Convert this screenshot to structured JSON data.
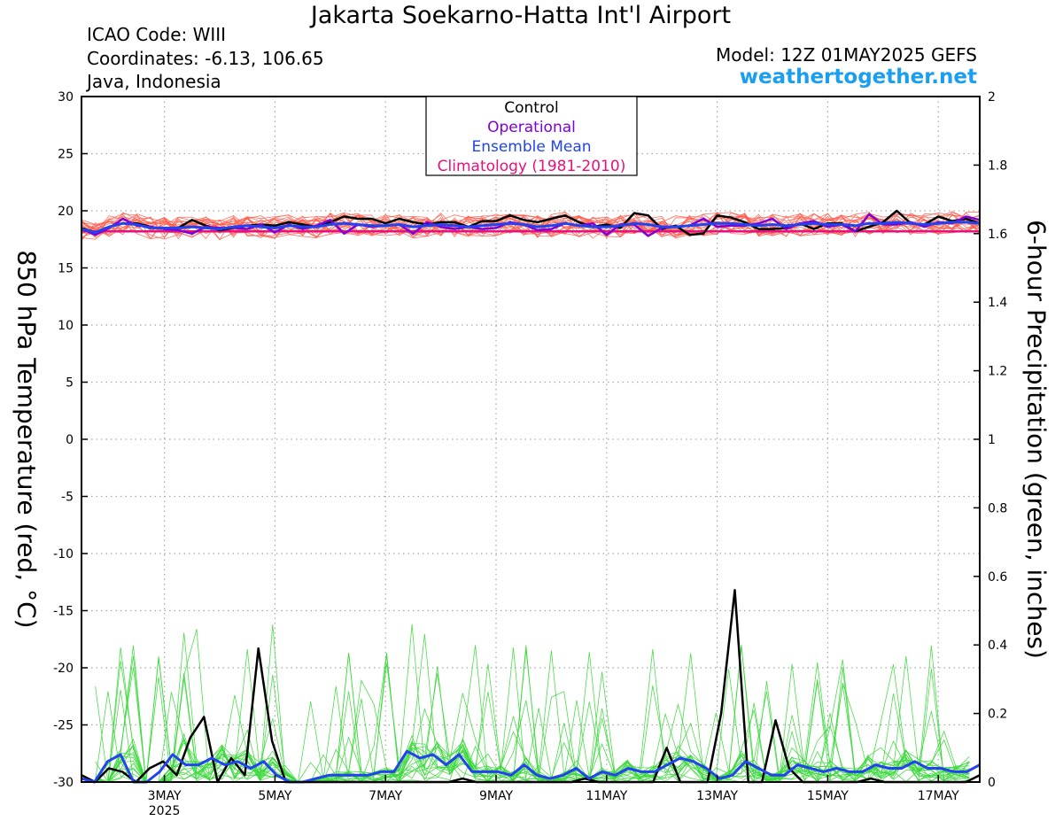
{
  "header": {
    "title": "Jakarta Soekarno-Hatta Int'l Airport",
    "icao": "ICAO Code: WIII",
    "coords": "Coordinates: -6.13, 106.65",
    "region": "Java, Indonesia",
    "model": "Model: 12Z 01MAY2025 GEFS",
    "site": "weathertogether.net"
  },
  "colors": {
    "control": "#000000",
    "operational": "#8000d8",
    "ensemble_mean": "#2244ee",
    "climatology": "#e8107a",
    "members_temp": "#ff5a4a",
    "members_precip": "#38d838",
    "site": "#1a9ff0"
  },
  "chart_data": {
    "type": "line",
    "title": "Jakarta Soekarno-Hatta Int'l Airport",
    "ylabel_left": "850 hPa Temperature (red, °C)",
    "ylabel_right": "6-hour Precipitation (green, inches)",
    "ylim_left": [
      -30,
      30
    ],
    "ylim_right": [
      0,
      2
    ],
    "yticks_left": [
      "30",
      "25",
      "20",
      "15",
      "10",
      "5",
      "0",
      "-5",
      "-10",
      "-15",
      "-20",
      "-25",
      "-30"
    ],
    "yticks_right": [
      "2",
      "1.8",
      "1.6",
      "1.4",
      "1.2",
      "1",
      "0.8",
      "0.6",
      "0.4",
      "0.2",
      "0"
    ],
    "x_range_hours": [
      0,
      390
    ],
    "xticks": [
      {
        "hour": 36,
        "label": "3MAY",
        "sub": "2025"
      },
      {
        "hour": 84,
        "label": "5MAY",
        "sub": ""
      },
      {
        "hour": 132,
        "label": "7MAY",
        "sub": ""
      },
      {
        "hour": 180,
        "label": "9MAY",
        "sub": ""
      },
      {
        "hour": 228,
        "label": "11MAY",
        "sub": ""
      },
      {
        "hour": 276,
        "label": "13MAY",
        "sub": ""
      },
      {
        "hour": 324,
        "label": "15MAY",
        "sub": ""
      },
      {
        "hour": 372,
        "label": "17MAY",
        "sub": ""
      }
    ],
    "legend": {
      "position": "top-center",
      "entries": [
        "Control",
        "Operational",
        "Ensemble Mean",
        "Climatology (1981-2010)"
      ]
    },
    "grid": true,
    "series": [
      {
        "name": "Control",
        "axis": "temperature",
        "values": [
          18.5,
          18.1,
          18.6,
          18.9,
          18.9,
          18.6,
          18.4,
          18.5,
          19.2,
          18.7,
          18.3,
          18.5,
          18.7,
          18.8,
          18.7,
          19.0,
          18.8,
          18.6,
          19.0,
          19.5,
          19.3,
          19.3,
          18.9,
          19.3,
          19.0,
          18.8,
          19.0,
          19.0,
          18.6,
          19.1,
          19.1,
          19.6,
          19.2,
          19.0,
          19.3,
          19.6,
          19.0,
          18.6,
          18.8,
          18.5,
          19.8,
          19.6,
          18.4,
          18.7,
          17.9,
          18.0,
          19.6,
          19.4,
          19.0,
          18.4,
          18.4,
          18.5,
          18.9,
          18.4,
          18.9,
          18.9,
          18.2,
          18.6,
          19.0,
          20.0,
          18.9,
          18.8,
          19.5,
          19.1,
          19.3,
          18.9
        ]
      },
      {
        "name": "Operational",
        "axis": "temperature",
        "values": [
          18.4,
          17.9,
          18.5,
          19.3,
          18.7,
          18.6,
          18.4,
          18.3,
          18.0,
          18.6,
          18.5,
          18.5,
          18.4,
          18.8,
          18.1,
          18.8,
          18.4,
          18.7,
          19.2,
          18.0,
          18.8,
          18.6,
          18.7,
          18.8,
          18.0,
          19.0,
          18.6,
          18.4,
          18.6,
          18.4,
          18.5,
          19.0,
          18.8,
          18.3,
          18.4,
          18.9,
          18.7,
          18.9,
          17.9,
          18.8,
          18.8,
          17.8,
          18.5,
          18.6,
          18.7,
          19.3,
          18.6,
          18.7,
          18.7,
          18.9,
          19.3,
          18.4,
          18.9,
          19.1,
          18.6,
          18.8,
          18.2,
          19.7,
          18.8,
          18.8,
          19.0,
          18.6,
          19.0,
          18.9,
          19.5,
          19.2
        ]
      },
      {
        "name": "Ensemble Mean",
        "axis": "temperature",
        "values": [
          18.4,
          18.1,
          18.6,
          18.9,
          18.8,
          18.5,
          18.5,
          18.5,
          18.6,
          18.5,
          18.4,
          18.6,
          18.7,
          18.6,
          18.5,
          18.7,
          18.6,
          18.6,
          18.8,
          18.9,
          18.8,
          18.7,
          18.7,
          18.8,
          18.6,
          18.7,
          18.8,
          18.7,
          18.6,
          18.7,
          18.8,
          18.9,
          18.8,
          18.6,
          18.7,
          18.9,
          18.7,
          18.6,
          18.6,
          18.7,
          18.9,
          18.8,
          18.6,
          18.6,
          18.7,
          18.8,
          18.9,
          18.9,
          18.8,
          18.7,
          18.8,
          18.7,
          18.8,
          18.9,
          18.8,
          18.8,
          18.7,
          18.9,
          18.9,
          19.0,
          18.9,
          18.8,
          18.9,
          19.0,
          19.0,
          18.9
        ]
      },
      {
        "name": "Climatology (1981-2010)",
        "axis": "temperature",
        "values": [
          18.2,
          18.2
        ]
      },
      {
        "name": "Control precipitation",
        "axis": "precipitation",
        "values": [
          0.02,
          0.0,
          0.04,
          0.03,
          0.0,
          0.04,
          0.06,
          0.02,
          0.13,
          0.19,
          0.0,
          0.07,
          0.02,
          0.39,
          0.12,
          0.0,
          0.0,
          0.0,
          0.0,
          0.0,
          0.0,
          0.0,
          0.0,
          0.0,
          0.0,
          0.0,
          0.0,
          0.0,
          0.01,
          0.0,
          0.0,
          0.0,
          0.0,
          0.0,
          0.0,
          0.0,
          0.0,
          0.01,
          0.0,
          0.0,
          0.0,
          0.0,
          0.0,
          0.1,
          0.0,
          0.0,
          0.0,
          0.2,
          0.56,
          0.0,
          0.0,
          0.18,
          0.04,
          0.0,
          0.0,
          0.0,
          0.0,
          0.0,
          0.01,
          0.0,
          0.0,
          0.0,
          0.0,
          0.0,
          0.0,
          0.0,
          0.02
        ]
      },
      {
        "name": "Ensemble Mean precipitation",
        "axis": "precipitation",
        "values": [
          0.01,
          0.0,
          0.06,
          0.08,
          0.0,
          0.0,
          0.03,
          0.08,
          0.05,
          0.05,
          0.07,
          0.05,
          0.06,
          0.04,
          0.06,
          0.02,
          0.0,
          0.0,
          0.01,
          0.02,
          0.02,
          0.02,
          0.02,
          0.03,
          0.03,
          0.09,
          0.07,
          0.08,
          0.05,
          0.08,
          0.03,
          0.03,
          0.03,
          0.02,
          0.05,
          0.02,
          0.01,
          0.02,
          0.04,
          0.01,
          0.03,
          0.02,
          0.04,
          0.03,
          0.03,
          0.05,
          0.07,
          0.06,
          0.04,
          0.01,
          0.02,
          0.06,
          0.04,
          0.02,
          0.02,
          0.05,
          0.04,
          0.03,
          0.04,
          0.03,
          0.03,
          0.05,
          0.04,
          0.04,
          0.06,
          0.04,
          0.04,
          0.03,
          0.03,
          0.05
        ]
      }
    ]
  }
}
